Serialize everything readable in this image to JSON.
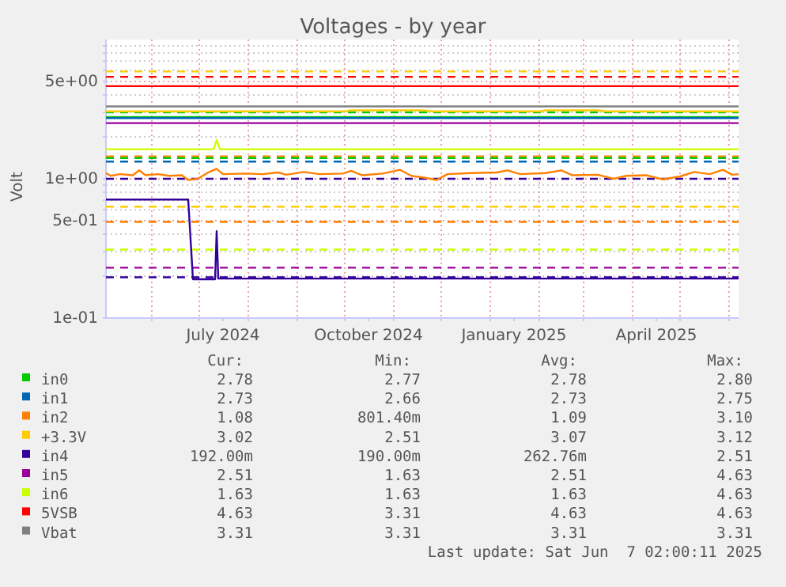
{
  "chart_data": {
    "type": "line",
    "title": "Voltages - by year",
    "ylabel": "Volt",
    "log": true,
    "grid": true,
    "legend": "bottom",
    "xlim": [
      "2024-05-03",
      "2025-06-07"
    ],
    "xticks": [
      {
        "value": "2024-06-01",
        "label": null
      },
      {
        "value": "2024-07-01",
        "label": null
      },
      {
        "value": "2024-07-16",
        "label": "July 2024"
      },
      {
        "value": "2024-08-01",
        "label": null
      },
      {
        "value": "2024-09-01",
        "label": null
      },
      {
        "value": "2024-10-01",
        "label": null
      },
      {
        "value": "2024-10-16",
        "label": "October 2024"
      },
      {
        "value": "2024-11-01",
        "label": null
      },
      {
        "value": "2024-12-01",
        "label": null
      },
      {
        "value": "2025-01-01",
        "label": null
      },
      {
        "value": "2025-01-16",
        "label": "January 2025"
      },
      {
        "value": "2025-02-01",
        "label": null
      },
      {
        "value": "2025-03-01",
        "label": null
      },
      {
        "value": "2025-04-01",
        "label": null
      },
      {
        "value": "2025-04-16",
        "label": "April 2025"
      },
      {
        "value": "2025-05-01",
        "label": null
      },
      {
        "value": "2025-06-01",
        "label": null
      }
    ],
    "ylim": [
      0.1,
      10
    ],
    "yticks": [
      {
        "value": 0.1,
        "label": "1e-01"
      },
      {
        "value": 0.2,
        "label": null
      },
      {
        "value": 0.3,
        "label": null
      },
      {
        "value": 0.4,
        "label": null
      },
      {
        "value": 0.5,
        "label": "5e-01"
      },
      {
        "value": 0.6,
        "label": null
      },
      {
        "value": 0.7,
        "label": null
      },
      {
        "value": 0.8,
        "label": null
      },
      {
        "value": 0.9,
        "label": null
      },
      {
        "value": 1,
        "label": "1e+00"
      },
      {
        "value": 2,
        "label": null
      },
      {
        "value": 3,
        "label": null
      },
      {
        "value": 4,
        "label": null
      },
      {
        "value": 5,
        "label": "5e+00"
      },
      {
        "value": 6,
        "label": null
      },
      {
        "value": 7,
        "label": null
      },
      {
        "value": 8,
        "label": null
      },
      {
        "value": 9,
        "label": null
      }
    ],
    "series": [
      {
        "name": "in0",
        "color": "#00cc00",
        "x": [
          "2024-05-03",
          "2025-06-07"
        ],
        "values": [
          2.78,
          2.78
        ]
      },
      {
        "name": "in1",
        "color": "#0066b3",
        "x": [
          "2024-05-03",
          "2025-06-07"
        ],
        "values": [
          2.73,
          2.73
        ]
      },
      {
        "name": "in2",
        "color": "#ff8000",
        "x": [
          "2024-05-03",
          "2024-05-06",
          "2024-05-12",
          "2024-05-20",
          "2024-05-24",
          "2024-05-28",
          "2024-06-05",
          "2024-06-12",
          "2024-06-20",
          "2024-06-24",
          "2024-06-30",
          "2024-07-06",
          "2024-07-12",
          "2024-07-16",
          "2024-07-30",
          "2024-08-10",
          "2024-08-20",
          "2024-08-25",
          "2024-09-05",
          "2024-09-15",
          "2024-09-30",
          "2024-10-05",
          "2024-10-12",
          "2024-10-25",
          "2024-11-05",
          "2024-11-12",
          "2024-11-20",
          "2024-11-28",
          "2024-12-05",
          "2024-12-20",
          "2025-01-05",
          "2025-01-12",
          "2025-01-20",
          "2025-02-05",
          "2025-02-15",
          "2025-02-22",
          "2025-03-10",
          "2025-03-20",
          "2025-03-28",
          "2025-04-10",
          "2025-04-20",
          "2025-05-01",
          "2025-05-10",
          "2025-05-20",
          "2025-05-28",
          "2025-06-03",
          "2025-06-07"
        ],
        "values": [
          1.1,
          1.05,
          1.08,
          1.06,
          1.15,
          1.06,
          1.08,
          1.05,
          1.06,
          0.98,
          1.0,
          1.1,
          1.18,
          1.08,
          1.09,
          1.08,
          1.11,
          1.07,
          1.12,
          1.08,
          1.09,
          1.14,
          1.06,
          1.09,
          1.16,
          1.05,
          1.02,
          0.98,
          1.08,
          1.1,
          1.11,
          1.15,
          1.08,
          1.1,
          1.15,
          1.06,
          1.07,
          1.0,
          1.05,
          1.06,
          0.99,
          1.04,
          1.12,
          1.08,
          1.16,
          1.07,
          1.08
        ]
      },
      {
        "name": "+3.3V",
        "color": "#ffcc00",
        "x": [
          "2024-05-03",
          "2024-10-01",
          "2024-10-05",
          "2024-11-20",
          "2024-11-25",
          "2025-02-01",
          "2025-02-05",
          "2025-03-10",
          "2025-03-15",
          "2025-06-07"
        ],
        "values": [
          3.05,
          3.05,
          3.1,
          3.1,
          3.05,
          3.05,
          3.1,
          3.1,
          3.05,
          3.05
        ]
      },
      {
        "name": "in4",
        "color": "#330099",
        "x": [
          "2024-05-03",
          "2024-06-24",
          "2024-06-27",
          "2024-07-10",
          "2024-07-11",
          "2024-07-12",
          "2024-07-13",
          "2025-06-07"
        ],
        "values": [
          0.71,
          0.71,
          0.19,
          0.19,
          0.19,
          0.42,
          0.192,
          0.192
        ]
      },
      {
        "name": "in5",
        "color": "#990099",
        "x": [
          "2024-05-03",
          "2025-06-07"
        ],
        "values": [
          2.51,
          2.51
        ]
      },
      {
        "name": "in6",
        "color": "#ccff00",
        "x": [
          "2024-05-03",
          "2024-07-10",
          "2024-07-12",
          "2024-07-14",
          "2025-06-07"
        ],
        "values": [
          1.63,
          1.63,
          1.9,
          1.63,
          1.63
        ]
      },
      {
        "name": "5VSB",
        "color": "#ff0000",
        "x": [
          "2024-05-03",
          "2025-06-07"
        ],
        "values": [
          4.63,
          4.63
        ]
      },
      {
        "name": "Vbat",
        "color": "#808080",
        "x": [
          "2024-05-03",
          "2025-06-07"
        ],
        "values": [
          3.31,
          3.31
        ]
      }
    ],
    "ref_lines": [
      {
        "axis": "y",
        "value": 5.9,
        "color": "#ffcc00",
        "line_style": "dashed"
      },
      {
        "axis": "y",
        "value": 5.4,
        "color": "#ff0000",
        "line_style": "dashed"
      },
      {
        "axis": "y",
        "value": 3.0,
        "color": "#00cc00",
        "line_style": "dashed"
      },
      {
        "axis": "y",
        "value": 1.45,
        "color": "#ff8000",
        "line_style": "dashed"
      },
      {
        "axis": "y",
        "value": 1.41,
        "color": "#00cc00",
        "line_style": "dashed"
      },
      {
        "axis": "y",
        "value": 1.33,
        "color": "#0066b3",
        "line_style": "dashed"
      },
      {
        "axis": "y",
        "value": 1.0,
        "color": "#330099",
        "line_style": "dashed"
      },
      {
        "axis": "y",
        "value": 0.63,
        "color": "#ffcc00",
        "line_style": "dashed"
      },
      {
        "axis": "y",
        "value": 0.49,
        "color": "#ff8000",
        "line_style": "dashed"
      },
      {
        "axis": "y",
        "value": 0.31,
        "color": "#ccff00",
        "line_style": "dashed"
      },
      {
        "axis": "y",
        "value": 0.23,
        "color": "#990099",
        "line_style": "dashed"
      },
      {
        "axis": "y",
        "value": 0.196,
        "color": "#330099",
        "line_style": "dashed"
      }
    ],
    "annotations": [
      "Cur:",
      "Min:",
      "Avg:",
      "Max:",
      "2.78",
      "2.77",
      "2.78",
      "2.80",
      "2.73",
      "2.66",
      "2.73",
      "2.75",
      "1.08",
      "801.40m",
      "1.09",
      "3.10",
      "3.02",
      "2.51",
      "3.07",
      "3.12",
      "192.00m",
      "190.00m",
      "262.76m",
      "2.51",
      "2.51",
      "1.63",
      "2.51",
      "4.63",
      "1.63",
      "1.63",
      "1.63",
      "4.63",
      "4.63",
      "3.31",
      "4.63",
      "4.63",
      "3.31",
      "3.31",
      "3.31",
      "3.31",
      "Last update: Sat Jun  7 02:00:11 2025"
    ]
  }
}
